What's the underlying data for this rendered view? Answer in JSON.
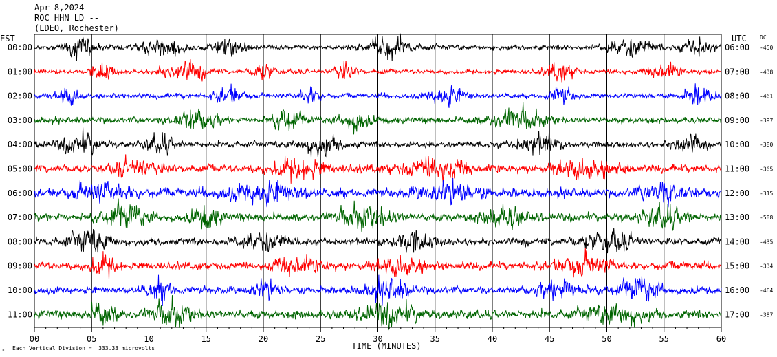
{
  "header": {
    "date": "Apr 8,2024",
    "station": "ROC HHN LD --",
    "network": "(LDEO, Rochester)",
    "left_zone": "EST",
    "right_zone": "UTC",
    "dc_label": "DC"
  },
  "footer": {
    "scale_note": "Each Vertical Division =  333.33 microvolts",
    "corner_mark": "JL"
  },
  "colors": {
    "trace_cycle": [
      "#000000",
      "#ff0000",
      "#0000ff",
      "#006400"
    ],
    "grid": "#000000",
    "background": "#ffffff"
  },
  "chart_data": {
    "type": "line",
    "title": "",
    "xlabel": "TIME (MINUTES)",
    "ylabel": "",
    "xlim": [
      0,
      60
    ],
    "x_ticks": [
      "00",
      "05",
      "10",
      "15",
      "20",
      "25",
      "30",
      "35",
      "40",
      "45",
      "50",
      "55",
      "60"
    ],
    "grid": true,
    "rows": [
      {
        "est": "00:00",
        "utc": "06:00",
        "dc": "-450",
        "color": "#000000",
        "amplitude": 0.6,
        "bursts": [
          [
            4,
            2
          ],
          [
            11,
            3
          ],
          [
            17,
            2
          ],
          [
            31,
            3
          ],
          [
            52,
            3
          ],
          [
            58,
            2
          ]
        ]
      },
      {
        "est": "01:00",
        "utc": "07:00",
        "dc": "-438",
        "color": "#ff0000",
        "amplitude": 0.55,
        "bursts": [
          [
            6,
            1.5
          ],
          [
            13,
            3
          ],
          [
            20,
            1.5
          ],
          [
            27,
            1.5
          ],
          [
            46,
            2
          ],
          [
            55,
            2
          ]
        ]
      },
      {
        "est": "02:00",
        "utc": "08:00",
        "dc": "-461",
        "color": "#0000ff",
        "amplitude": 0.6,
        "bursts": [
          [
            3,
            1.5
          ],
          [
            17,
            2
          ],
          [
            24,
            1.5
          ],
          [
            36,
            2.5
          ],
          [
            46,
            1.5
          ],
          [
            58,
            2
          ]
        ]
      },
      {
        "est": "03:00",
        "utc": "09:00",
        "dc": "-397",
        "color": "#006400",
        "amplitude": 0.75,
        "bursts": [
          [
            14,
            3
          ],
          [
            22,
            2
          ],
          [
            28,
            2
          ],
          [
            42,
            4
          ]
        ]
      },
      {
        "est": "04:00",
        "utc": "10:00",
        "dc": "-380",
        "color": "#000000",
        "amplitude": 0.7,
        "bursts": [
          [
            4,
            3
          ],
          [
            11,
            2
          ],
          [
            25,
            3
          ],
          [
            44,
            3
          ],
          [
            57,
            2
          ]
        ]
      },
      {
        "est": "05:00",
        "utc": "11:00",
        "dc": "-365",
        "color": "#ff0000",
        "amplitude": 0.95,
        "bursts": [
          [
            9,
            3
          ],
          [
            23,
            4
          ],
          [
            35,
            5
          ],
          [
            48,
            4
          ]
        ]
      },
      {
        "est": "06:00",
        "utc": "12:00",
        "dc": "-315",
        "color": "#0000ff",
        "amplitude": 1.1,
        "bursts": [
          [
            6,
            4
          ],
          [
            20,
            5
          ],
          [
            36,
            4
          ],
          [
            55,
            3
          ]
        ]
      },
      {
        "est": "07:00",
        "utc": "13:00",
        "dc": "-508",
        "color": "#006400",
        "amplitude": 1.0,
        "bursts": [
          [
            8,
            3
          ],
          [
            15,
            2
          ],
          [
            29,
            4
          ],
          [
            41,
            3
          ],
          [
            55,
            3
          ]
        ]
      },
      {
        "est": "08:00",
        "utc": "14:00",
        "dc": "-435",
        "color": "#000000",
        "amplitude": 0.85,
        "bursts": [
          [
            5,
            3
          ],
          [
            20,
            3
          ],
          [
            33,
            3
          ],
          [
            50,
            4
          ]
        ]
      },
      {
        "est": "09:00",
        "utc": "15:00",
        "dc": "-334",
        "color": "#ff0000",
        "amplitude": 0.95,
        "bursts": [
          [
            6,
            2
          ],
          [
            23,
            3
          ],
          [
            32,
            3
          ],
          [
            48,
            4
          ]
        ]
      },
      {
        "est": "10:00",
        "utc": "16:00",
        "dc": "-464",
        "color": "#0000ff",
        "amplitude": 0.9,
        "bursts": [
          [
            11,
            2
          ],
          [
            20,
            2
          ],
          [
            31,
            3
          ],
          [
            46,
            3
          ],
          [
            53,
            3
          ]
        ]
      },
      {
        "est": "11:00",
        "utc": "17:00",
        "dc": "-387",
        "color": "#006400",
        "amplitude": 1.05,
        "bursts": [
          [
            6,
            2
          ],
          [
            12,
            3
          ],
          [
            31,
            4
          ],
          [
            51,
            4
          ]
        ]
      }
    ]
  }
}
